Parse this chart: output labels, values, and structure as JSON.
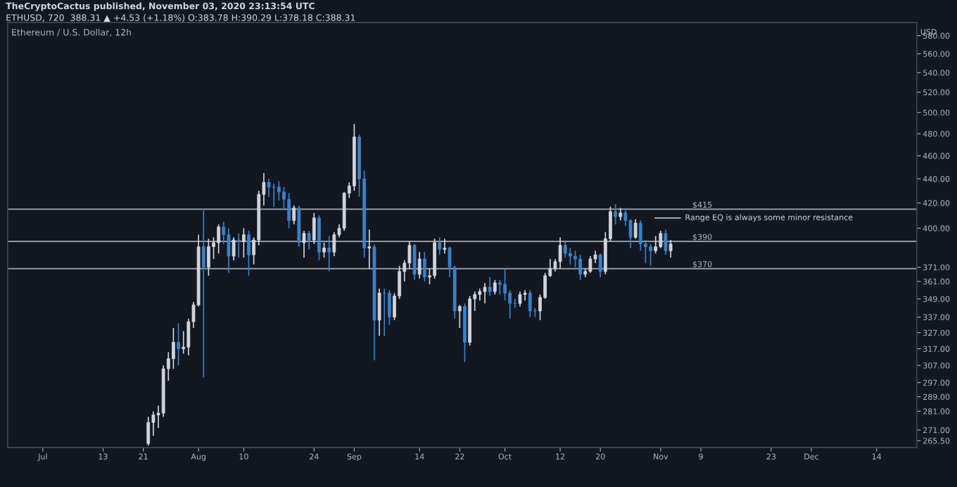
{
  "chart_data": {
    "type": "candlestick",
    "title": "Ethereum / U.S. Dollar, 12h",
    "ylabel": "USD",
    "annotations": [
      "TheCryptoCactus published, November 03, 2020 23:13:54 UTC",
      "ETHUSD, 720  388.31 ▲ +4.53 (+1.18%) O:383.78 H:390.29 L:378.18 C:388.31",
      "Range EQ is always some minor resistance"
    ],
    "x": [
      "2020-07-22",
      "2020-07-23",
      "2020-07-24",
      "2020-07-25",
      "2020-07-26",
      "2020-07-27",
      "2020-07-28",
      "2020-07-29",
      "2020-07-30",
      "2020-07-31",
      "2020-08-01",
      "2020-08-02",
      "2020-08-03",
      "2020-08-04",
      "2020-08-05",
      "2020-08-06",
      "2020-08-07",
      "2020-08-08",
      "2020-08-09",
      "2020-08-10",
      "2020-08-11",
      "2020-08-12",
      "2020-08-13",
      "2020-08-14",
      "2020-08-15",
      "2020-08-16",
      "2020-08-17",
      "2020-08-18",
      "2020-08-19",
      "2020-08-20",
      "2020-08-21",
      "2020-08-22",
      "2020-08-23",
      "2020-08-24",
      "2020-08-25",
      "2020-08-26",
      "2020-08-27",
      "2020-08-28",
      "2020-08-29",
      "2020-08-30",
      "2020-08-31",
      "2020-09-01",
      "2020-09-02",
      "2020-09-03",
      "2020-09-04",
      "2020-09-05",
      "2020-09-06",
      "2020-09-07",
      "2020-09-08",
      "2020-09-09",
      "2020-09-10",
      "2020-09-11",
      "2020-09-12",
      "2020-09-13",
      "2020-09-14",
      "2020-09-15",
      "2020-09-16",
      "2020-09-17",
      "2020-09-18",
      "2020-09-19",
      "2020-09-20",
      "2020-09-21",
      "2020-09-22",
      "2020-09-23",
      "2020-09-24",
      "2020-09-25",
      "2020-09-26",
      "2020-09-27",
      "2020-09-28",
      "2020-09-29",
      "2020-09-30",
      "2020-10-01",
      "2020-10-02",
      "2020-10-03",
      "2020-10-04",
      "2020-10-05",
      "2020-10-06",
      "2020-10-07",
      "2020-10-08",
      "2020-10-09",
      "2020-10-10",
      "2020-10-11",
      "2020-10-12",
      "2020-10-13",
      "2020-10-14",
      "2020-10-15",
      "2020-10-16",
      "2020-10-17",
      "2020-10-18",
      "2020-10-19",
      "2020-10-20",
      "2020-10-21",
      "2020-10-22",
      "2020-10-23",
      "2020-10-24",
      "2020-10-25",
      "2020-10-26",
      "2020-10-27",
      "2020-10-28",
      "2020-10-29",
      "2020-10-30",
      "2020-10-31",
      "2020-11-01",
      "2020-11-02",
      "2020-11-03"
    ],
    "ohlc": [
      [
        264,
        278,
        263,
        275
      ],
      [
        275,
        281,
        268,
        279
      ],
      [
        279,
        284,
        272,
        280
      ],
      [
        280,
        307,
        278,
        305
      ],
      [
        305,
        315,
        298,
        311
      ],
      [
        311,
        330,
        305,
        321
      ],
      [
        321,
        333,
        307,
        317
      ],
      [
        317,
        328,
        314,
        318
      ],
      [
        318,
        336,
        313,
        334
      ],
      [
        334,
        347,
        330,
        345
      ],
      [
        345,
        395,
        344,
        386
      ],
      [
        386,
        414,
        300,
        371
      ],
      [
        371,
        392,
        365,
        386
      ],
      [
        386,
        393,
        377,
        389
      ],
      [
        389,
        403,
        381,
        401
      ],
      [
        401,
        405,
        388,
        395
      ],
      [
        395,
        400,
        367,
        379
      ],
      [
        379,
        393,
        376,
        391
      ],
      [
        391,
        396,
        378,
        390
      ],
      [
        390,
        400,
        378,
        395
      ],
      [
        395,
        398,
        365,
        380
      ],
      [
        380,
        393,
        373,
        391
      ],
      [
        391,
        430,
        387,
        427
      ],
      [
        427,
        445,
        418,
        437
      ],
      [
        437,
        440,
        425,
        433
      ],
      [
        433,
        436,
        417,
        433
      ],
      [
        433,
        438,
        422,
        429
      ],
      [
        429,
        433,
        414,
        423
      ],
      [
        423,
        428,
        400,
        406
      ],
      [
        406,
        418,
        403,
        416
      ],
      [
        416,
        418,
        386,
        389
      ],
      [
        389,
        398,
        378,
        396
      ],
      [
        396,
        398,
        384,
        391
      ],
      [
        391,
        412,
        388,
        408
      ],
      [
        408,
        410,
        376,
        382
      ],
      [
        382,
        389,
        378,
        385
      ],
      [
        385,
        394,
        368,
        382
      ],
      [
        382,
        397,
        379,
        395
      ],
      [
        395,
        403,
        393,
        400
      ],
      [
        400,
        429,
        398,
        428
      ],
      [
        428,
        437,
        424,
        434
      ],
      [
        434,
        489,
        430,
        477
      ],
      [
        477,
        479,
        425,
        440
      ],
      [
        440,
        447,
        378,
        385
      ],
      [
        385,
        399,
        370,
        386
      ],
      [
        386,
        388,
        310,
        335
      ],
      [
        335,
        356,
        325,
        353
      ],
      [
        353,
        356,
        325,
        353
      ],
      [
        353,
        355,
        332,
        337
      ],
      [
        337,
        353,
        335,
        351
      ],
      [
        351,
        372,
        349,
        368
      ],
      [
        368,
        376,
        361,
        374
      ],
      [
        374,
        390,
        370,
        387
      ],
      [
        387,
        388,
        362,
        366
      ],
      [
        366,
        382,
        363,
        377
      ],
      [
        377,
        382,
        361,
        364
      ],
      [
        364,
        370,
        359,
        365
      ],
      [
        365,
        392,
        363,
        389
      ],
      [
        389,
        393,
        380,
        384
      ],
      [
        384,
        392,
        381,
        385
      ],
      [
        385,
        386,
        364,
        371
      ],
      [
        371,
        372,
        336,
        341
      ],
      [
        341,
        345,
        330,
        344
      ],
      [
        344,
        346,
        309,
        321
      ],
      [
        321,
        351,
        319,
        349
      ],
      [
        349,
        354,
        341,
        352
      ],
      [
        352,
        356,
        348,
        354
      ],
      [
        354,
        360,
        346,
        357
      ],
      [
        357,
        364,
        351,
        354
      ],
      [
        354,
        362,
        352,
        360
      ],
      [
        360,
        362,
        352,
        359
      ],
      [
        359,
        370,
        348,
        353
      ],
      [
        353,
        355,
        336,
        346
      ],
      [
        346,
        349,
        343,
        346
      ],
      [
        346,
        354,
        344,
        352
      ],
      [
        352,
        355,
        348,
        353
      ],
      [
        353,
        355,
        337,
        341
      ],
      [
        341,
        343,
        337,
        341
      ],
      [
        341,
        352,
        335,
        350
      ],
      [
        350,
        367,
        349,
        365
      ],
      [
        365,
        377,
        364,
        370
      ],
      [
        370,
        377,
        368,
        375
      ],
      [
        375,
        393,
        370,
        387
      ],
      [
        387,
        390,
        378,
        381
      ],
      [
        381,
        385,
        373,
        379
      ],
      [
        379,
        383,
        371,
        377
      ],
      [
        377,
        380,
        362,
        366
      ],
      [
        366,
        370,
        364,
        368
      ],
      [
        368,
        379,
        367,
        377
      ],
      [
        377,
        383,
        374,
        380
      ],
      [
        380,
        381,
        364,
        368
      ],
      [
        368,
        397,
        366,
        392
      ],
      [
        392,
        417,
        390,
        413
      ],
      [
        413,
        419,
        403,
        409
      ],
      [
        409,
        416,
        406,
        412
      ],
      [
        412,
        416,
        402,
        406
      ],
      [
        406,
        407,
        385,
        393
      ],
      [
        393,
        407,
        392,
        404
      ],
      [
        404,
        406,
        383,
        388
      ],
      [
        388,
        391,
        374,
        386
      ],
      [
        386,
        388,
        372,
        383
      ],
      [
        383,
        394,
        381,
        386
      ],
      [
        386,
        398,
        385,
        396
      ],
      [
        396,
        399,
        380,
        383
      ],
      [
        383,
        391,
        378,
        388
      ]
    ],
    "colors": [
      "#d1d4dc",
      "#d1d4dc",
      "#d1d4dc",
      "#d1d4dc",
      "#d1d4dc",
      "#d1d4dc",
      "#3b82c6",
      "#d1d4dc",
      "#d1d4dc",
      "#d1d4dc",
      "#d1d4dc",
      "#3b82c6",
      "#d1d4dc",
      "#d1d4dc",
      "#d1d4dc",
      "#3b82c6",
      "#3b82c6",
      "#d1d4dc",
      "#3b82c6",
      "#d1d4dc",
      "#3b82c6",
      "#d1d4dc",
      "#d1d4dc",
      "#d1d4dc",
      "#3b82c6",
      "#3b82c6",
      "#3b82c6",
      "#3b82c6",
      "#3b82c6",
      "#d1d4dc",
      "#3b82c6",
      "#d1d4dc",
      "#3b82c6",
      "#d1d4dc",
      "#3b82c6",
      "#d1d4dc",
      "#3b82c6",
      "#d1d4dc",
      "#d1d4dc",
      "#d1d4dc",
      "#d1d4dc",
      "#d1d4dc",
      "#3b82c6",
      "#3b82c6",
      "#d1d4dc",
      "#3b82c6",
      "#d1d4dc",
      "#3b82c6",
      "#3b82c6",
      "#d1d4dc",
      "#d1d4dc",
      "#d1d4dc",
      "#d1d4dc",
      "#3b82c6",
      "#d1d4dc",
      "#3b82c6",
      "#d1d4dc",
      "#d1d4dc",
      "#3b82c6",
      "#d1d4dc",
      "#3b82c6",
      "#3b82c6",
      "#d1d4dc",
      "#3b82c6",
      "#d1d4dc",
      "#d1d4dc",
      "#d1d4dc",
      "#d1d4dc",
      "#3b82c6",
      "#d1d4dc",
      "#3b82c6",
      "#3b82c6",
      "#3b82c6",
      "#3b82c6",
      "#d1d4dc",
      "#d1d4dc",
      "#3b82c6",
      "#3b82c6",
      "#d1d4dc",
      "#d1d4dc",
      "#d1d4dc",
      "#d1d4dc",
      "#d1d4dc",
      "#3b82c6",
      "#3b82c6",
      "#3b82c6",
      "#3b82c6",
      "#d1d4dc",
      "#d1d4dc",
      "#d1d4dc",
      "#3b82c6",
      "#d1d4dc",
      "#d1d4dc",
      "#3b82c6",
      "#d1d4dc",
      "#3b82c6",
      "#3b82c6",
      "#d1d4dc",
      "#3b82c6",
      "#3b82c6",
      "#3b82c6",
      "#d1d4dc",
      "#d1d4dc",
      "#3b82c6",
      "#d1d4dc"
    ],
    "xlim": [
      "2020-06-24",
      "2020-12-22"
    ],
    "xticks": [
      {
        "value": "2020-07-01",
        "label": "Jul"
      },
      {
        "value": "2020-07-13",
        "label": "13"
      },
      {
        "value": "2020-07-21",
        "label": "21"
      },
      {
        "value": "2020-08-01",
        "label": "Aug"
      },
      {
        "value": "2020-08-10",
        "label": "10"
      },
      {
        "value": "2020-08-24",
        "label": "24"
      },
      {
        "value": "2020-09-01",
        "label": "Sep"
      },
      {
        "value": "2020-09-14",
        "label": "14"
      },
      {
        "value": "2020-09-22",
        "label": "22"
      },
      {
        "value": "2020-10-01",
        "label": "Oct"
      },
      {
        "value": "2020-10-12",
        "label": "12"
      },
      {
        "value": "2020-10-20",
        "label": "20"
      },
      {
        "value": "2020-11-01",
        "label": "Nov"
      },
      {
        "value": "2020-11-09",
        "label": "9"
      },
      {
        "value": "2020-11-23",
        "label": "23"
      },
      {
        "value": "2020-12-01",
        "label": "Dec"
      },
      {
        "value": "2020-12-14",
        "label": "14"
      }
    ],
    "log": "y",
    "ylim": [
      262,
      595
    ],
    "yticks": [
      {
        "value": 580,
        "label": "580.00"
      },
      {
        "value": 560,
        "label": "560.00"
      },
      {
        "value": 540,
        "label": "540.00"
      },
      {
        "value": 520,
        "label": "520.00"
      },
      {
        "value": 500,
        "label": "500.00"
      },
      {
        "value": 480,
        "label": "480.00"
      },
      {
        "value": 460,
        "label": "460.00"
      },
      {
        "value": 440,
        "label": "440.00"
      },
      {
        "value": 420,
        "label": "420.00"
      },
      {
        "value": 400,
        "label": "400.00"
      },
      {
        "value": 371,
        "label": "371.00"
      },
      {
        "value": 361,
        "label": "361.00"
      },
      {
        "value": 349,
        "label": "349.00"
      },
      {
        "value": 337,
        "label": "337.00"
      },
      {
        "value": 327,
        "label": "327.00"
      },
      {
        "value": 317,
        "label": "317.00"
      },
      {
        "value": 307,
        "label": "307.00"
      },
      {
        "value": 297,
        "label": "297.00"
      },
      {
        "value": 289,
        "label": "289.00"
      },
      {
        "value": 281,
        "label": "281.00"
      },
      {
        "value": 271,
        "label": "271.00"
      },
      {
        "value": 265.5,
        "label": "265.50"
      }
    ],
    "ref_lines": [
      {
        "axis": "y",
        "value": 415,
        "label": "$415",
        "color": "#9598a1"
      },
      {
        "axis": "y",
        "value": 390,
        "label": "$390",
        "color": "#9598a1"
      },
      {
        "axis": "y",
        "value": 370,
        "label": "$370",
        "color": "#9598a1"
      }
    ],
    "grid": false
  }
}
